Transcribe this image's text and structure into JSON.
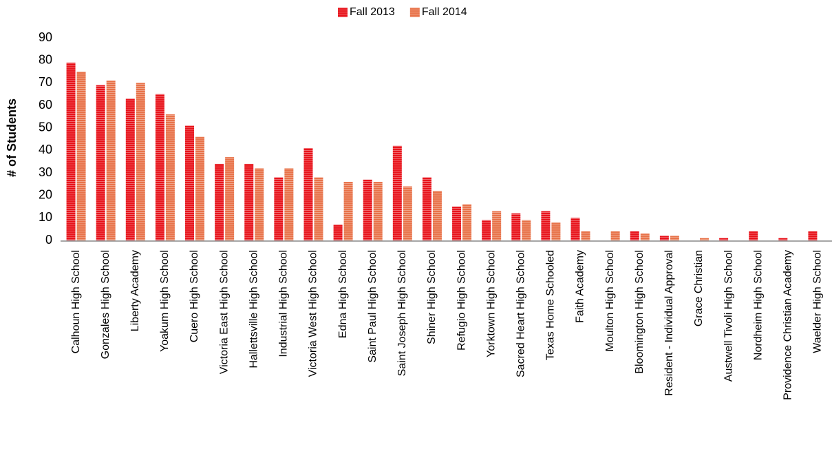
{
  "chart_data": {
    "type": "bar",
    "y_label": "# of Students",
    "categories": [
      "Calhoun High School",
      "Gonzales High School",
      "Liberty Academy",
      "Yoakum High School",
      "Cuero High School",
      "Victoria East High School",
      "Hallettsville High School",
      "Industrial High School",
      "Victoria West High School",
      "Edna High School",
      "Saint Paul High School",
      "Saint Joseph High School",
      "Shiner High School",
      "Refugio High School",
      "Yorktown High School",
      "Sacred Heart High School",
      "Texas Home Schooled",
      "Faith Academy",
      "Moulton High School",
      "Bloomington High School",
      "Resident - Individual Approval",
      "Grace Christian",
      "Austwell Tivoli High School",
      "Nordheim High School",
      "Providence Christian Academy",
      "Waelder High School"
    ],
    "series": [
      {
        "name": "Fall 2013",
        "color": "#e8141c",
        "values": [
          79,
          69,
          63,
          65,
          51,
          34,
          34,
          28,
          41,
          7,
          27,
          42,
          28,
          15,
          9,
          12,
          13,
          10,
          0,
          4,
          2,
          0,
          1,
          4,
          1,
          4
        ]
      },
      {
        "name": "Fall 2014",
        "color": "#e8734a",
        "values": [
          75,
          71,
          70,
          56,
          46,
          37,
          32,
          32,
          28,
          26,
          26,
          24,
          22,
          16,
          13,
          9,
          8,
          4,
          4,
          3,
          2,
          1,
          0,
          0,
          0,
          0
        ]
      }
    ],
    "ylim": [
      0,
      90
    ],
    "yticks": [
      0,
      10,
      20,
      30,
      40,
      50,
      60,
      70,
      80,
      90
    ],
    "legend": "top",
    "grid": false
  }
}
